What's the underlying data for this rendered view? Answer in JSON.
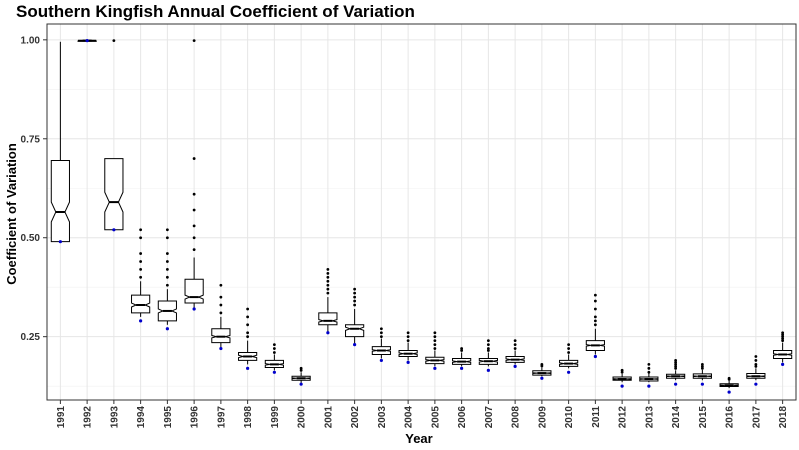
{
  "chart_data": {
    "type": "boxplot",
    "title": "Southern Kingfish Annual Coefficient of Variation",
    "xlabel": "Year",
    "ylabel": "Coefficient of Variation",
    "ylim": [
      0.09,
      1.04
    ],
    "yticks": [
      0.25,
      0.5,
      0.75,
      1.0
    ],
    "ytick_labels": [
      "0.25",
      "0.50",
      "0.75",
      "1.00"
    ],
    "grid": true,
    "notched": true,
    "colors": {
      "box": "#000000",
      "outlier": "#000000",
      "mean_point": "#0000cc",
      "grid": "#e6e6e6"
    },
    "categories": [
      "1991",
      "1992",
      "1993",
      "1994",
      "1995",
      "1996",
      "1997",
      "1998",
      "1999",
      "2000",
      "2001",
      "2002",
      "2003",
      "2004",
      "2005",
      "2006",
      "2007",
      "2008",
      "2009",
      "2010",
      "2011",
      "2012",
      "2013",
      "2014",
      "2015",
      "2016",
      "2017",
      "2018"
    ],
    "boxes": [
      {
        "year": "1991",
        "min": 0.49,
        "q1": 0.49,
        "median": 0.565,
        "q3": 0.695,
        "max": 0.995,
        "notch": [
          0.54,
          0.59
        ],
        "mean": 0.49,
        "outliers": []
      },
      {
        "year": "1992",
        "min": 0.995,
        "q1": 0.996,
        "median": 0.998,
        "q3": 0.999,
        "max": 1.0,
        "notch": [
          0.997,
          0.999
        ],
        "mean": 0.998,
        "outliers": []
      },
      {
        "year": "1993",
        "min": 0.52,
        "q1": 0.52,
        "median": 0.59,
        "q3": 0.7,
        "max": 0.7,
        "notch": [
          0.565,
          0.615
        ],
        "mean": 0.52,
        "outliers": [
          0.998
        ]
      },
      {
        "year": "1994",
        "min": 0.3,
        "q1": 0.31,
        "median": 0.33,
        "q3": 0.355,
        "max": 0.39,
        "notch": [
          0.325,
          0.335
        ],
        "mean": 0.29,
        "outliers": [
          0.4,
          0.42,
          0.44,
          0.46,
          0.5,
          0.52
        ]
      },
      {
        "year": "1995",
        "min": 0.28,
        "q1": 0.29,
        "median": 0.315,
        "q3": 0.34,
        "max": 0.37,
        "notch": [
          0.31,
          0.32
        ],
        "mean": 0.27,
        "outliers": [
          0.38,
          0.4,
          0.42,
          0.44,
          0.46,
          0.5,
          0.52
        ]
      },
      {
        "year": "1996",
        "min": 0.32,
        "q1": 0.335,
        "median": 0.35,
        "q3": 0.395,
        "max": 0.45,
        "notch": [
          0.345,
          0.355
        ],
        "mean": 0.32,
        "outliers": [
          0.47,
          0.5,
          0.53,
          0.57,
          0.61,
          0.7,
          0.998
        ]
      },
      {
        "year": "1997",
        "min": 0.22,
        "q1": 0.235,
        "median": 0.25,
        "q3": 0.27,
        "max": 0.3,
        "notch": [
          0.247,
          0.253
        ],
        "mean": 0.22,
        "outliers": [
          0.31,
          0.33,
          0.35,
          0.38
        ]
      },
      {
        "year": "1998",
        "min": 0.18,
        "q1": 0.19,
        "median": 0.2,
        "q3": 0.21,
        "max": 0.24,
        "notch": [
          0.197,
          0.203
        ],
        "mean": 0.17,
        "outliers": [
          0.25,
          0.26,
          0.28,
          0.3,
          0.32
        ]
      },
      {
        "year": "1999",
        "min": 0.165,
        "q1": 0.172,
        "median": 0.18,
        "q3": 0.19,
        "max": 0.205,
        "notch": [
          0.178,
          0.182
        ],
        "mean": 0.16,
        "outliers": [
          0.21,
          0.22,
          0.23
        ]
      },
      {
        "year": "2000",
        "min": 0.133,
        "q1": 0.14,
        "median": 0.145,
        "q3": 0.15,
        "max": 0.16,
        "notch": [
          0.144,
          0.146
        ],
        "mean": 0.13,
        "outliers": [
          0.165,
          0.17
        ]
      },
      {
        "year": "2001",
        "min": 0.26,
        "q1": 0.28,
        "median": 0.29,
        "q3": 0.31,
        "max": 0.35,
        "notch": [
          0.287,
          0.293
        ],
        "mean": 0.26,
        "outliers": [
          0.36,
          0.37,
          0.38,
          0.39,
          0.4,
          0.41,
          0.42
        ]
      },
      {
        "year": "2002",
        "min": 0.23,
        "q1": 0.25,
        "median": 0.27,
        "q3": 0.28,
        "max": 0.32,
        "notch": [
          0.266,
          0.274
        ],
        "mean": 0.23,
        "outliers": [
          0.33,
          0.34,
          0.35,
          0.36,
          0.37
        ]
      },
      {
        "year": "2003",
        "min": 0.195,
        "q1": 0.205,
        "median": 0.215,
        "q3": 0.225,
        "max": 0.245,
        "notch": [
          0.213,
          0.217
        ],
        "mean": 0.19,
        "outliers": [
          0.25,
          0.26,
          0.27
        ]
      },
      {
        "year": "2004",
        "min": 0.19,
        "q1": 0.2,
        "median": 0.207,
        "q3": 0.215,
        "max": 0.235,
        "notch": [
          0.205,
          0.209
        ],
        "mean": 0.185,
        "outliers": [
          0.24,
          0.25,
          0.26
        ]
      },
      {
        "year": "2005",
        "min": 0.175,
        "q1": 0.182,
        "median": 0.19,
        "q3": 0.198,
        "max": 0.215,
        "notch": [
          0.188,
          0.192
        ],
        "mean": 0.17,
        "outliers": [
          0.22,
          0.23,
          0.24,
          0.25,
          0.26
        ]
      },
      {
        "year": "2006",
        "min": 0.175,
        "q1": 0.18,
        "median": 0.187,
        "q3": 0.195,
        "max": 0.21,
        "notch": [
          0.185,
          0.189
        ],
        "mean": 0.17,
        "outliers": [
          0.215,
          0.22
        ]
      },
      {
        "year": "2007",
        "min": 0.175,
        "q1": 0.18,
        "median": 0.188,
        "q3": 0.195,
        "max": 0.21,
        "notch": [
          0.186,
          0.19
        ],
        "mean": 0.165,
        "outliers": [
          0.215,
          0.22,
          0.23,
          0.24
        ]
      },
      {
        "year": "2008",
        "min": 0.18,
        "q1": 0.185,
        "median": 0.192,
        "q3": 0.2,
        "max": 0.215,
        "notch": [
          0.19,
          0.194
        ],
        "mean": 0.175,
        "outliers": [
          0.22,
          0.23,
          0.24
        ]
      },
      {
        "year": "2009",
        "min": 0.15,
        "q1": 0.153,
        "median": 0.158,
        "q3": 0.164,
        "max": 0.172,
        "notch": [
          0.157,
          0.159
        ],
        "mean": 0.145,
        "outliers": [
          0.176,
          0.18
        ]
      },
      {
        "year": "2010",
        "min": 0.17,
        "q1": 0.175,
        "median": 0.182,
        "q3": 0.19,
        "max": 0.205,
        "notch": [
          0.18,
          0.184
        ],
        "mean": 0.16,
        "outliers": [
          0.21,
          0.22,
          0.23
        ]
      },
      {
        "year": "2011",
        "min": 0.205,
        "q1": 0.215,
        "median": 0.228,
        "q3": 0.24,
        "max": 0.27,
        "notch": [
          0.226,
          0.23
        ],
        "mean": 0.2,
        "outliers": [
          0.28,
          0.29,
          0.3,
          0.32,
          0.34,
          0.355
        ]
      },
      {
        "year": "2012",
        "min": 0.135,
        "q1": 0.14,
        "median": 0.143,
        "q3": 0.148,
        "max": 0.156,
        "notch": [
          0.142,
          0.144
        ],
        "mean": 0.125,
        "outliers": [
          0.16,
          0.165
        ]
      },
      {
        "year": "2013",
        "min": 0.135,
        "q1": 0.138,
        "median": 0.143,
        "q3": 0.148,
        "max": 0.157,
        "notch": [
          0.142,
          0.144
        ],
        "mean": 0.125,
        "outliers": [
          0.16,
          0.17,
          0.18
        ]
      },
      {
        "year": "2014",
        "min": 0.14,
        "q1": 0.145,
        "median": 0.15,
        "q3": 0.155,
        "max": 0.165,
        "notch": [
          0.149,
          0.151
        ],
        "mean": 0.13,
        "outliers": [
          0.17,
          0.175,
          0.18,
          0.185,
          0.19
        ]
      },
      {
        "year": "2015",
        "min": 0.14,
        "q1": 0.145,
        "median": 0.15,
        "q3": 0.156,
        "max": 0.166,
        "notch": [
          0.149,
          0.151
        ],
        "mean": 0.13,
        "outliers": [
          0.17,
          0.175,
          0.18
        ]
      },
      {
        "year": "2016",
        "min": 0.12,
        "q1": 0.124,
        "median": 0.127,
        "q3": 0.131,
        "max": 0.138,
        "notch": [
          0.126,
          0.128
        ],
        "mean": 0.11,
        "outliers": [
          0.142,
          0.145
        ]
      },
      {
        "year": "2017",
        "min": 0.14,
        "q1": 0.145,
        "median": 0.15,
        "q3": 0.157,
        "max": 0.17,
        "notch": [
          0.149,
          0.151
        ],
        "mean": 0.13,
        "outliers": [
          0.175,
          0.18,
          0.19,
          0.2
        ]
      },
      {
        "year": "2018",
        "min": 0.185,
        "q1": 0.195,
        "median": 0.205,
        "q3": 0.215,
        "max": 0.235,
        "notch": [
          0.203,
          0.207
        ],
        "mean": 0.18,
        "outliers": [
          0.24,
          0.245,
          0.25,
          0.255,
          0.26
        ]
      }
    ]
  }
}
